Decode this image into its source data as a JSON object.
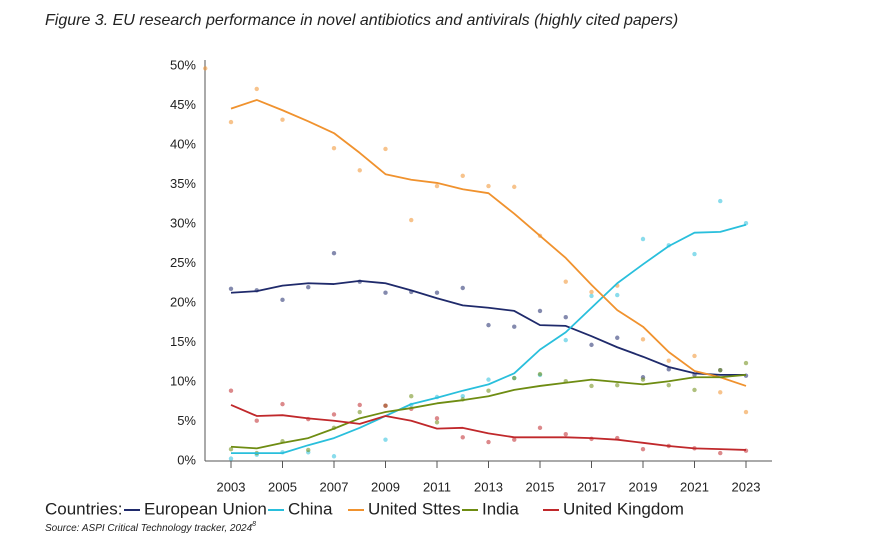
{
  "chart_data": {
    "type": "line",
    "title": "Figure 3. EU research performance in novel antibiotics and antivirals (highly cited papers)",
    "legend_title": "Countries:",
    "source": "Source: ASPI Critical Technology tracker, 2024",
    "source_note": "8",
    "x": [
      2003,
      2004,
      2005,
      2006,
      2007,
      2008,
      2009,
      2010,
      2011,
      2012,
      2013,
      2014,
      2015,
      2016,
      2017,
      2018,
      2019,
      2020,
      2021,
      2022,
      2023
    ],
    "xlim": [
      2002,
      2024
    ],
    "xticks": [
      2003,
      2005,
      2007,
      2009,
      2011,
      2013,
      2015,
      2017,
      2019,
      2021,
      2023
    ],
    "ylim": [
      0,
      50
    ],
    "yticks": [
      {
        "value": 0,
        "label": "0%"
      },
      {
        "value": 5,
        "label": "5%"
      },
      {
        "value": 10,
        "label": "10%"
      },
      {
        "value": 15,
        "label": "15%"
      },
      {
        "value": 20,
        "label": "20%"
      },
      {
        "value": 25,
        "label": "25%"
      },
      {
        "value": 30,
        "label": "30%"
      },
      {
        "value": 35,
        "label": "35%"
      },
      {
        "value": 40,
        "label": "40%"
      },
      {
        "value": 45,
        "label": "45%"
      },
      {
        "value": 50,
        "label": "50%"
      }
    ],
    "series": [
      {
        "name": "European Union",
        "color": "#1f2a6b",
        "values": [
          21.3,
          21.5,
          22.2,
          22.5,
          22.4,
          22.8,
          22.5,
          21.6,
          20.6,
          19.7,
          19.4,
          19.0,
          17.2,
          17.1,
          15.8,
          14.4,
          13.2,
          11.9,
          11.1,
          10.9,
          10.9
        ],
        "points": {
          "x": [
            2003,
            2004,
            2005,
            2006,
            2007,
            2008,
            2009,
            2010,
            2011,
            2012,
            2013,
            2014,
            2015,
            2016,
            2017,
            2018,
            2019,
            2020,
            2021,
            2022,
            2023
          ],
          "values": [
            21.8,
            21.6,
            20.4,
            22.0,
            26.3,
            22.7,
            21.3,
            21.4,
            21.3,
            21.9,
            17.2,
            17.0,
            19.0,
            18.2,
            14.7,
            15.6,
            10.6,
            11.6,
            10.9,
            11.5,
            10.8
          ]
        }
      },
      {
        "name": "China",
        "color": "#29bfdc",
        "values": [
          1.0,
          1.0,
          1.0,
          2.0,
          2.9,
          4.2,
          5.7,
          7.2,
          8.0,
          8.9,
          9.7,
          11.1,
          14.1,
          16.3,
          19.4,
          22.5,
          24.9,
          27.2,
          28.9,
          29.0,
          29.9
        ],
        "points": {
          "x": [
            2003,
            2004,
            2005,
            2006,
            2007,
            2009,
            2010,
            2011,
            2012,
            2013,
            2014,
            2015,
            2016,
            2017,
            2018,
            2019,
            2020,
            2021,
            2022,
            2023
          ],
          "values": [
            0.3,
            0.8,
            1.1,
            1.1,
            0.6,
            2.7,
            7.1,
            8.1,
            8.2,
            10.3,
            10.5,
            10.9,
            15.3,
            20.9,
            21.0,
            28.1,
            27.3,
            26.2,
            32.9,
            30.1
          ]
        }
      },
      {
        "name": "United Sttes",
        "color": "#f0922e",
        "values": [
          44.6,
          45.7,
          44.4,
          43.0,
          41.5,
          39.0,
          36.3,
          35.6,
          35.2,
          34.4,
          33.9,
          31.3,
          28.5,
          25.7,
          22.3,
          19.1,
          17.0,
          13.8,
          11.4,
          10.6,
          9.5
        ],
        "points": {
          "x": [
            2002,
            2003,
            2004,
            2005,
            2007,
            2008,
            2009,
            2010,
            2011,
            2012,
            2013,
            2014,
            2015,
            2016,
            2017,
            2018,
            2019,
            2020,
            2021,
            2022,
            2023
          ],
          "values": [
            49.7,
            42.9,
            47.1,
            43.2,
            39.6,
            36.8,
            39.5,
            30.5,
            34.8,
            36.1,
            34.8,
            34.7,
            28.5,
            22.7,
            21.4,
            22.2,
            15.4,
            12.7,
            13.3,
            8.7,
            6.2
          ]
        }
      },
      {
        "name": "India",
        "color": "#6e8c12",
        "values": [
          1.8,
          1.6,
          2.3,
          2.9,
          4.1,
          5.4,
          6.2,
          6.7,
          7.3,
          7.7,
          8.2,
          9.0,
          9.5,
          9.9,
          10.3,
          10.0,
          9.7,
          10.1,
          10.6,
          10.6,
          10.9
        ],
        "points": {
          "x": [
            2003,
            2004,
            2005,
            2006,
            2007,
            2008,
            2009,
            2010,
            2011,
            2012,
            2013,
            2014,
            2015,
            2016,
            2017,
            2018,
            2019,
            2020,
            2021,
            2022,
            2023
          ],
          "values": [
            1.5,
            1.0,
            2.5,
            1.4,
            4.2,
            6.2,
            7.0,
            8.2,
            4.9,
            7.8,
            8.9,
            10.5,
            11.0,
            10.1,
            9.5,
            9.6,
            10.3,
            9.6,
            9.0,
            11.5,
            12.4
          ]
        }
      },
      {
        "name": "United Kingdom",
        "color": "#c0282b",
        "values": [
          7.1,
          5.7,
          5.8,
          5.4,
          5.1,
          4.7,
          5.7,
          5.1,
          4.1,
          4.2,
          3.5,
          3.0,
          3.0,
          3.0,
          2.9,
          2.7,
          2.3,
          1.9,
          1.6,
          1.5,
          1.4
        ],
        "points": {
          "x": [
            2003,
            2004,
            2005,
            2006,
            2007,
            2008,
            2009,
            2010,
            2011,
            2012,
            2013,
            2014,
            2015,
            2016,
            2017,
            2018,
            2019,
            2020,
            2021,
            2022,
            2023
          ],
          "values": [
            8.9,
            5.1,
            7.2,
            5.3,
            5.9,
            7.1,
            7.0,
            6.6,
            5.4,
            3.0,
            2.4,
            2.7,
            4.2,
            3.4,
            2.8,
            2.9,
            1.5,
            1.9,
            1.6,
            1.0,
            1.3
          ]
        }
      }
    ]
  }
}
